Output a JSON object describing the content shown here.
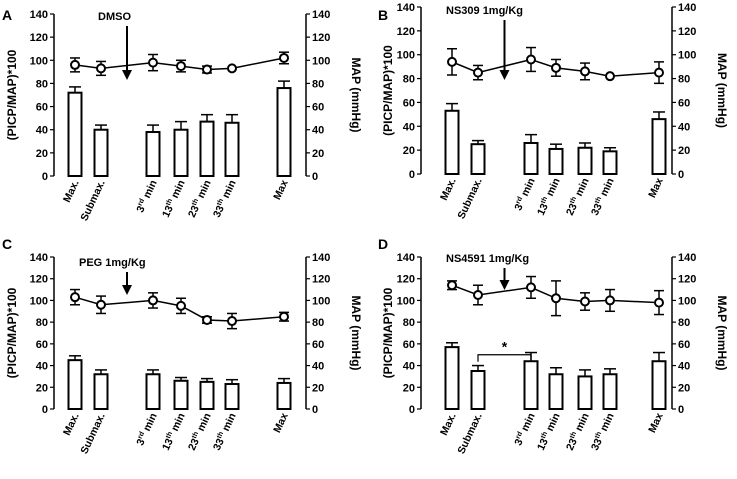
{
  "chart_data": [
    {
      "type": "bar",
      "panel": "A",
      "treatment": "DMSO",
      "ylabel_left": "(PICP/MAP)*100",
      "ylabel_right": "MAP (mmHg)",
      "ylim": [
        0,
        140
      ],
      "yticks": [
        0,
        20,
        40,
        60,
        80,
        100,
        120,
        140
      ],
      "categories": [
        {
          "main": "Max.",
          "sup": "",
          "tail": ""
        },
        {
          "main": "Submax.",
          "sup": "",
          "tail": ""
        },
        {
          "main": "3",
          "sup": "rd",
          "tail": " min"
        },
        {
          "main": "13",
          "sup": "th",
          "tail": " min"
        },
        {
          "main": "23",
          "sup": "th",
          "tail": " min"
        },
        {
          "main": "33",
          "sup": "th",
          "tail": " min"
        },
        {
          "main": "Max",
          "sup": "",
          "tail": ""
        }
      ],
      "series": [
        {
          "name": "(PICP/MAP)*100",
          "kind": "bar",
          "values": [
            72,
            40,
            38,
            40,
            47,
            46,
            76
          ],
          "errors": [
            5,
            4,
            6,
            7,
            6,
            7,
            6
          ]
        },
        {
          "name": "MAP (mmHg)",
          "kind": "line",
          "values": [
            96,
            93,
            98,
            95,
            92,
            93,
            102
          ],
          "errors": [
            6,
            6,
            7,
            5,
            3,
            0,
            5
          ]
        }
      ],
      "treatment_index": 1.5,
      "significance": null
    },
    {
      "type": "bar",
      "panel": "B",
      "treatment": "NS309 1mg/Kg",
      "ylabel_left": "(PICP/MAP)*100",
      "ylabel_right": "MAP (mmHg)",
      "ylim": [
        0,
        140
      ],
      "yticks": [
        0,
        20,
        40,
        60,
        80,
        100,
        120,
        140
      ],
      "categories": [
        {
          "main": "Max.",
          "sup": "",
          "tail": ""
        },
        {
          "main": "Submax.",
          "sup": "",
          "tail": ""
        },
        {
          "main": "3",
          "sup": "rd",
          "tail": " min"
        },
        {
          "main": "13",
          "sup": "th",
          "tail": " min"
        },
        {
          "main": "23",
          "sup": "th",
          "tail": " min"
        },
        {
          "main": "33",
          "sup": "th",
          "tail": " min"
        },
        {
          "main": "Max",
          "sup": "",
          "tail": ""
        }
      ],
      "series": [
        {
          "name": "(PICP/MAP)*100",
          "kind": "bar",
          "values": [
            53,
            25,
            26,
            21,
            22,
            19,
            46
          ],
          "errors": [
            6,
            3,
            7,
            4,
            4,
            3,
            6
          ]
        },
        {
          "name": "MAP (mmHg)",
          "kind": "line",
          "values": [
            94,
            85,
            96,
            89,
            86,
            82,
            85
          ],
          "errors": [
            11,
            6,
            10,
            7,
            7,
            0,
            9
          ]
        }
      ],
      "treatment_index": 1.5,
      "significance": null
    },
    {
      "type": "bar",
      "panel": "C",
      "treatment": "PEG 1mg/Kg",
      "ylabel_left": "(PICP/MAP)*100",
      "ylabel_right": "MAP (mmHg)",
      "ylim": [
        0,
        140
      ],
      "yticks": [
        0,
        20,
        40,
        60,
        80,
        100,
        120,
        140
      ],
      "categories": [
        {
          "main": "Max.",
          "sup": "",
          "tail": ""
        },
        {
          "main": "Submax.",
          "sup": "",
          "tail": ""
        },
        {
          "main": "3",
          "sup": "rd",
          "tail": " min"
        },
        {
          "main": "13",
          "sup": "th",
          "tail": " min"
        },
        {
          "main": "23",
          "sup": "th",
          "tail": " min"
        },
        {
          "main": "33",
          "sup": "th",
          "tail": " min"
        },
        {
          "main": "Max",
          "sup": "",
          "tail": ""
        }
      ],
      "series": [
        {
          "name": "(PICP/MAP)*100",
          "kind": "bar",
          "values": [
            45,
            32,
            32,
            26,
            25,
            23,
            24
          ],
          "errors": [
            4,
            4,
            4,
            3,
            3,
            4,
            4
          ]
        },
        {
          "name": "MAP (mmHg)",
          "kind": "line",
          "values": [
            103,
            96,
            100,
            95,
            82,
            81,
            85
          ],
          "errors": [
            7,
            8,
            7,
            7,
            3,
            7,
            4
          ]
        }
      ],
      "treatment_index": 1.5,
      "significance": null
    },
    {
      "type": "bar",
      "panel": "D",
      "treatment": "NS4591 1mg/Kg",
      "ylabel_left": "(PICP/MAP)*100",
      "ylabel_right": "MAP (mmHg)",
      "ylim": [
        0,
        140
      ],
      "yticks": [
        0,
        20,
        40,
        60,
        80,
        100,
        120,
        140
      ],
      "categories": [
        {
          "main": "Max.",
          "sup": "",
          "tail": ""
        },
        {
          "main": "Submax.",
          "sup": "",
          "tail": ""
        },
        {
          "main": "3",
          "sup": "rd",
          "tail": " min"
        },
        {
          "main": "13",
          "sup": "th",
          "tail": " min"
        },
        {
          "main": "23",
          "sup": "th",
          "tail": " min"
        },
        {
          "main": "33",
          "sup": "th",
          "tail": " min"
        },
        {
          "main": "Max",
          "sup": "",
          "tail": ""
        }
      ],
      "series": [
        {
          "name": "(PICP/MAP)*100",
          "kind": "bar",
          "values": [
            57,
            35,
            44,
            32,
            30,
            32,
            44
          ],
          "errors": [
            4,
            5,
            8,
            6,
            6,
            5,
            8
          ]
        },
        {
          "name": "MAP (mmHg)",
          "kind": "line",
          "values": [
            114,
            105,
            112,
            102,
            99,
            100,
            98
          ],
          "errors": [
            4,
            9,
            10,
            16,
            8,
            10,
            11
          ]
        }
      ],
      "treatment_index": 1.5,
      "significance": {
        "from": 1,
        "to": 2,
        "label": "*"
      }
    }
  ]
}
